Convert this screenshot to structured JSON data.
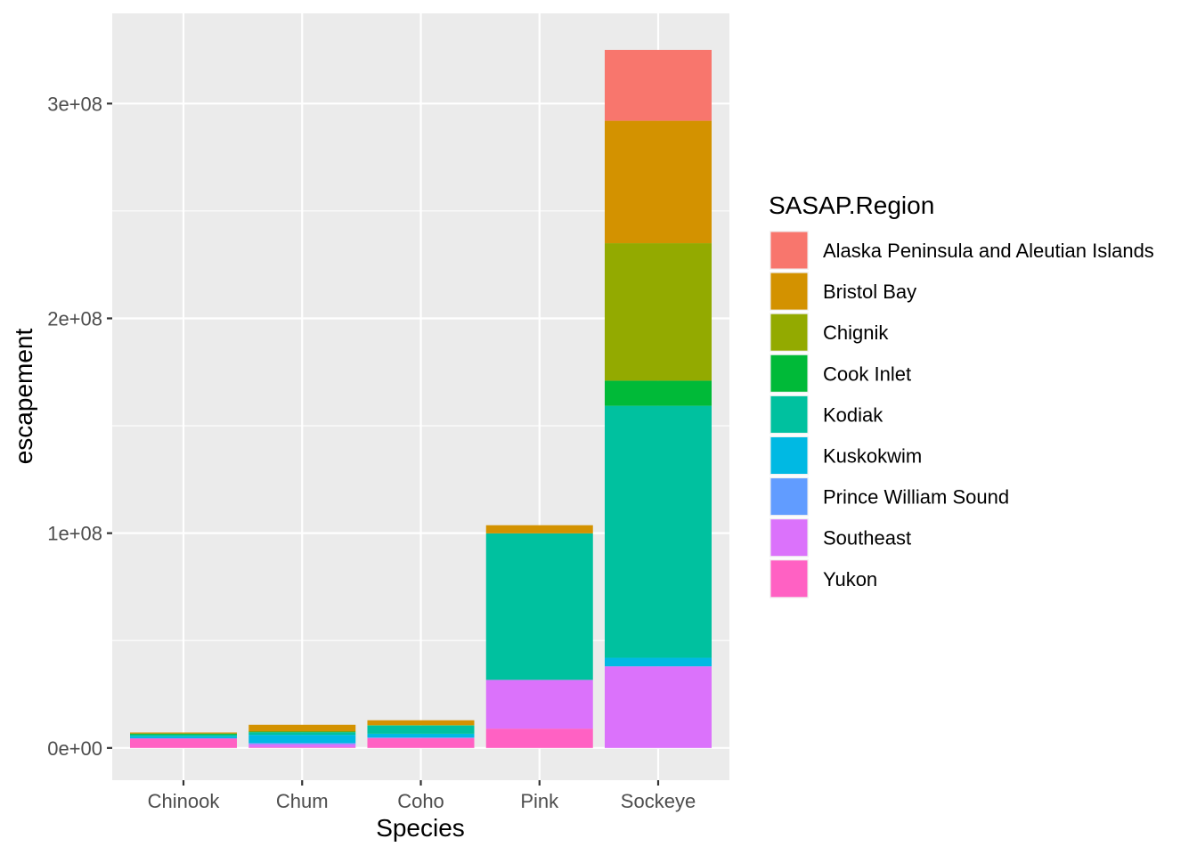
{
  "chart_data": {
    "type": "bar",
    "stacked": true,
    "xlabel": "Species",
    "ylabel": "escapement",
    "ylim": [
      -15000000,
      342000000
    ],
    "yticks": [
      {
        "value": 0,
        "label": "0e+00"
      },
      {
        "value": 100000000,
        "label": "1e+08"
      },
      {
        "value": 200000000,
        "label": "2e+08"
      },
      {
        "value": 300000000,
        "label": "3e+08"
      }
    ],
    "grid": true,
    "legend": {
      "title": "SASAP.Region",
      "placement": "right"
    },
    "categories": [
      "Chinook",
      "Chum",
      "Coho",
      "Pink",
      "Sockeye"
    ],
    "series": [
      {
        "name": "Alaska Peninsula and Aleutian Islands",
        "color": "#F8766D",
        "values": [
          0,
          0,
          0,
          0,
          33000000
        ]
      },
      {
        "name": "Bristol Bay",
        "color": "#D39200",
        "values": [
          500000,
          3200000,
          2300000,
          3800000,
          57000000
        ]
      },
      {
        "name": "Chignik",
        "color": "#93AA00",
        "values": [
          0,
          0,
          0,
          0,
          64000000
        ]
      },
      {
        "name": "Cook Inlet",
        "color": "#00BA38",
        "values": [
          500000,
          300000,
          200000,
          0,
          11700000
        ]
      },
      {
        "name": "Kodiak",
        "color": "#00C19F",
        "values": [
          800000,
          1200000,
          3800000,
          68200000,
          117300000
        ]
      },
      {
        "name": "Kuskokwim",
        "color": "#00B9E3",
        "values": [
          900000,
          3800000,
          1800000,
          0,
          4000000
        ]
      },
      {
        "name": "Prince William Sound",
        "color": "#619CFF",
        "values": [
          0,
          500000,
          0,
          0,
          0
        ]
      },
      {
        "name": "Southeast",
        "color": "#DB72FB",
        "values": [
          200000,
          1500000,
          300000,
          22700000,
          38000000
        ]
      },
      {
        "name": "Yukon",
        "color": "#FF61C3",
        "values": [
          4300000,
          300000,
          4500000,
          9000000,
          0
        ]
      }
    ]
  }
}
